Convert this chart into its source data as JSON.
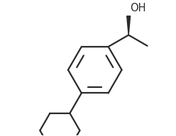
{
  "background_color": "#ffffff",
  "line_color": "#2a2a2a",
  "line_width": 1.6,
  "oh_label": "OH",
  "font_size": 10.5,
  "figsize": [
    2.48,
    1.92
  ],
  "dpi": 100,
  "xlim": [
    0,
    10
  ],
  "ylim": [
    0,
    7.7
  ]
}
